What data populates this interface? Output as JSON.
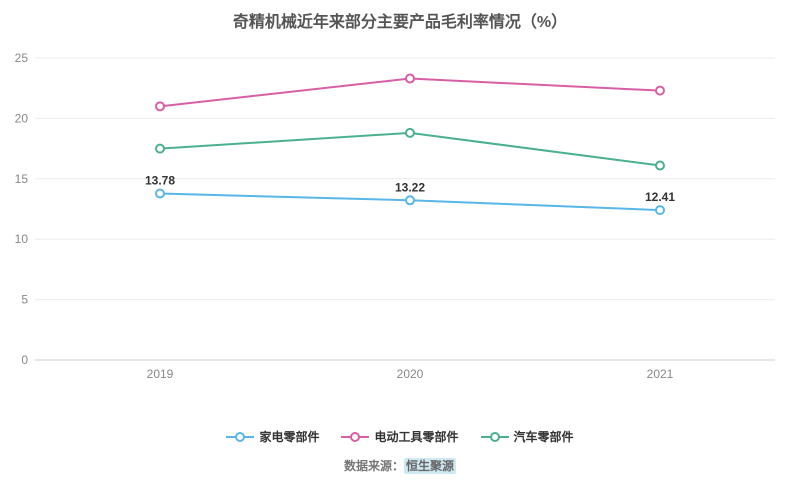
{
  "title": "奇精机械近年来部分主要产品毛利率情况（%）",
  "source": {
    "prefix": "数据来源：",
    "name": "恒生聚源"
  },
  "chart_data": {
    "type": "line",
    "categories": [
      "2019",
      "2020",
      "2021"
    ],
    "series": [
      {
        "name": "家电零部件",
        "color": "#58b7e8",
        "values": [
          13.78,
          13.22,
          12.41
        ],
        "labels": [
          "13.78",
          "13.22",
          "12.41"
        ]
      },
      {
        "name": "电动工具零部件",
        "color": "#d85fa4",
        "values": [
          21.0,
          23.3,
          22.3
        ]
      },
      {
        "name": "汽车零部件",
        "color": "#4bb08f",
        "values": [
          17.5,
          18.8,
          16.1
        ]
      }
    ],
    "ylim": [
      0,
      25
    ],
    "yticks": [
      0,
      5,
      10,
      15,
      20,
      25
    ],
    "grid": true,
    "legend_position": "bottom",
    "axis_color": "#cccccc",
    "grid_color": "#ebebeb",
    "tick_label_color": "#888888",
    "data_label_color": "#333333"
  }
}
